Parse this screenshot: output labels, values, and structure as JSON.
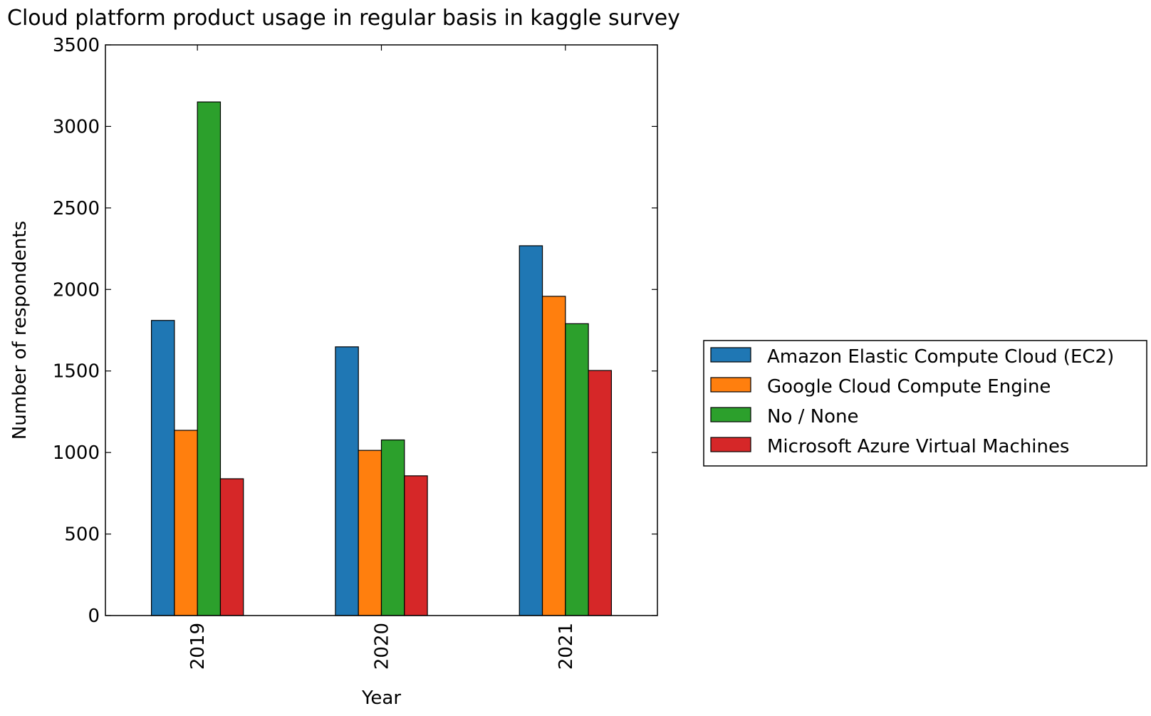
{
  "chart_data": {
    "type": "bar",
    "title": "Cloud platform product usage in regular basis in kaggle survey",
    "xlabel": "Year",
    "ylabel": "Number of respondents",
    "categories": [
      "2019",
      "2020",
      "2021"
    ],
    "ylim": [
      0,
      3500
    ],
    "yticks": [
      0,
      500,
      1000,
      1500,
      2000,
      2500,
      3000,
      3500
    ],
    "grid": false,
    "legend_position": "right",
    "series": [
      {
        "name": "Amazon Elastic Compute Cloud (EC2)",
        "color": "#1f77b4",
        "values": [
          1810,
          1648,
          2268
        ]
      },
      {
        "name": "Google Cloud Compute Engine",
        "color": "#ff7f0e",
        "values": [
          1136,
          1013,
          1958
        ]
      },
      {
        "name": "No / None",
        "color": "#2ca02c",
        "values": [
          3150,
          1077,
          1790
        ]
      },
      {
        "name": "Microsoft Azure Virtual Machines",
        "color": "#d62728",
        "values": [
          839,
          857,
          1503
        ]
      }
    ]
  }
}
